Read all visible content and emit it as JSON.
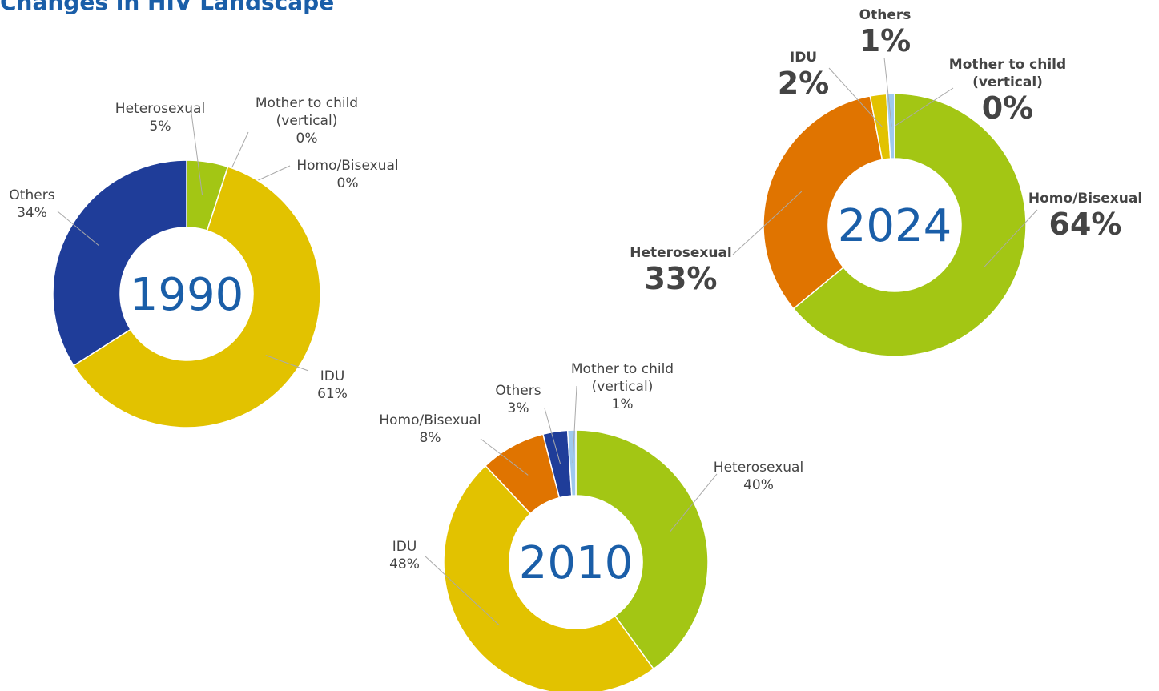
{
  "title": "Changes in HIV Landscape",
  "chart_data": [
    {
      "type": "donut",
      "title": "1990",
      "categories": [
        "Heterosexual",
        "Mother to child (vertical)",
        "Homo/Bisexual",
        "IDU",
        "Others"
      ],
      "values": [
        5,
        0,
        0,
        61,
        34
      ],
      "value_labels": [
        "5%",
        "0%",
        "0%",
        "61%",
        "34%"
      ],
      "colors": [
        "#a3c614",
        "#9ec9ee",
        "#e07400",
        "#e2c200",
        "#1f3d99"
      ]
    },
    {
      "type": "donut",
      "title": "2010",
      "categories": [
        "Heterosexual",
        "IDU",
        "Homo/Bisexual",
        "Others",
        "Mother to child (vertical)"
      ],
      "values": [
        40,
        48,
        8,
        3,
        1
      ],
      "value_labels": [
        "40%",
        "48%",
        "8%",
        "3%",
        "1%"
      ],
      "colors": [
        "#a3c614",
        "#e2c200",
        "#e07400",
        "#1f3d99",
        "#9ec9ee"
      ]
    },
    {
      "type": "donut",
      "title": "2024",
      "categories": [
        "Homo/Bisexual",
        "Heterosexual",
        "IDU",
        "Others",
        "Mother to child (vertical)"
      ],
      "values": [
        64,
        33,
        2,
        1,
        0
      ],
      "value_labels": [
        "64%",
        "33%",
        "2%",
        "1%",
        "0%"
      ],
      "colors": [
        "#a3c614",
        "#e07400",
        "#e2c200",
        "#9ec9ee",
        "#1f3d99"
      ]
    }
  ]
}
